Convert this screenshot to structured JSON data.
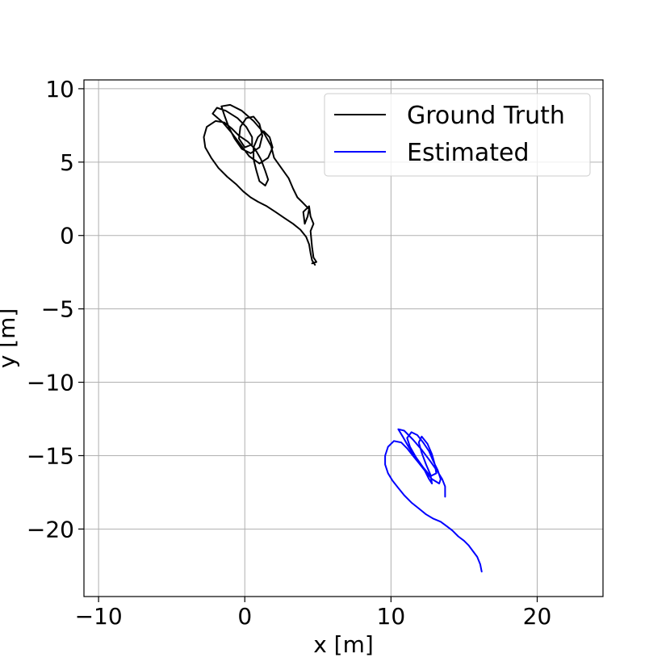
{
  "chart_data": {
    "type": "line",
    "xlabel": "x [m]",
    "ylabel": "y [m]",
    "xlim": [
      -11,
      24.5
    ],
    "ylim": [
      -24.6,
      10.6
    ],
    "xticks": [
      -10,
      0,
      10,
      20
    ],
    "yticks": [
      10,
      5,
      0,
      -5,
      -10,
      -15,
      -20
    ],
    "xtick_labels": [
      "−10",
      "0",
      "10",
      "20"
    ],
    "ytick_labels": [
      "10",
      "5",
      "0",
      "−5",
      "−10",
      "−15",
      "−20"
    ],
    "grid": true,
    "legend_position": "top-right",
    "series": [
      {
        "name": "Ground Truth",
        "color": "#000000",
        "points": [
          [
            4.8,
            -2.0
          ],
          [
            4.6,
            -1.7
          ],
          [
            4.5,
            -1.2
          ],
          [
            4.4,
            -0.6
          ],
          [
            4.2,
            -0.1
          ],
          [
            3.8,
            0.4
          ],
          [
            3.3,
            0.8
          ],
          [
            2.7,
            1.2
          ],
          [
            2.1,
            1.6
          ],
          [
            1.5,
            2.0
          ],
          [
            0.9,
            2.3
          ],
          [
            0.4,
            2.6
          ],
          [
            -0.1,
            3.0
          ],
          [
            -0.6,
            3.5
          ],
          [
            -1.2,
            4.0
          ],
          [
            -1.8,
            4.6
          ],
          [
            -2.3,
            5.3
          ],
          [
            -2.7,
            6.0
          ],
          [
            -2.8,
            6.7
          ],
          [
            -2.6,
            7.4
          ],
          [
            -2.0,
            7.8
          ],
          [
            -1.4,
            7.7
          ],
          [
            -0.9,
            7.3
          ],
          [
            -0.4,
            6.8
          ],
          [
            0.2,
            6.4
          ],
          [
            0.7,
            5.9
          ],
          [
            1.1,
            5.2
          ],
          [
            1.4,
            4.4
          ],
          [
            1.6,
            3.8
          ],
          [
            1.4,
            3.4
          ],
          [
            1.0,
            3.7
          ],
          [
            0.8,
            4.4
          ],
          [
            0.6,
            5.2
          ],
          [
            0.6,
            6.0
          ],
          [
            0.9,
            6.7
          ],
          [
            1.3,
            7.1
          ],
          [
            1.7,
            6.7
          ],
          [
            1.9,
            6.0
          ],
          [
            1.6,
            5.3
          ],
          [
            1.0,
            4.9
          ],
          [
            0.3,
            5.4
          ],
          [
            -0.3,
            6.2
          ],
          [
            -0.9,
            7.0
          ],
          [
            -1.5,
            7.7
          ],
          [
            -2.2,
            8.3
          ],
          [
            -1.9,
            8.7
          ],
          [
            -1.3,
            8.5
          ],
          [
            -0.5,
            8.0
          ],
          [
            0.1,
            7.4
          ],
          [
            0.5,
            6.7
          ],
          [
            0.5,
            6.2
          ],
          [
            0.0,
            6.0
          ],
          [
            -0.4,
            6.6
          ],
          [
            -0.3,
            7.4
          ],
          [
            0.1,
            8.0
          ],
          [
            0.6,
            8.1
          ],
          [
            1.0,
            7.6
          ],
          [
            1.2,
            6.8
          ],
          [
            1.0,
            6.0
          ],
          [
            0.4,
            5.6
          ],
          [
            -0.2,
            5.9
          ],
          [
            -0.7,
            6.6
          ],
          [
            -1.1,
            7.4
          ],
          [
            -1.4,
            8.2
          ],
          [
            -1.6,
            8.8
          ],
          [
            -1.0,
            8.9
          ],
          [
            -0.2,
            8.5
          ],
          [
            0.6,
            7.8
          ],
          [
            1.3,
            7.0
          ],
          [
            1.8,
            6.1
          ],
          [
            2.0,
            5.3
          ],
          [
            2.5,
            4.6
          ],
          [
            3.0,
            3.9
          ],
          [
            3.3,
            3.2
          ],
          [
            3.6,
            2.6
          ],
          [
            3.9,
            2.3
          ],
          [
            4.2,
            2.0
          ],
          [
            4.4,
            1.8
          ],
          [
            4.3,
            1.3
          ],
          [
            4.1,
            0.8
          ],
          [
            4.0,
            1.6
          ],
          [
            4.4,
            2.0
          ],
          [
            4.5,
            1.3
          ],
          [
            4.7,
            0.8
          ],
          [
            4.5,
            0.3
          ],
          [
            4.6,
            -0.8
          ],
          [
            4.7,
            -1.5
          ],
          [
            4.9,
            -1.8
          ],
          [
            4.6,
            -1.9
          ]
        ]
      },
      {
        "name": "Estimated",
        "color": "#0000ff",
        "points": [
          [
            16.2,
            -22.9
          ],
          [
            16.1,
            -22.4
          ],
          [
            15.9,
            -21.9
          ],
          [
            15.6,
            -21.5
          ],
          [
            15.3,
            -21.1
          ],
          [
            15.0,
            -20.8
          ],
          [
            14.6,
            -20.5
          ],
          [
            14.2,
            -20.1
          ],
          [
            13.8,
            -19.8
          ],
          [
            13.4,
            -19.5
          ],
          [
            12.9,
            -19.3
          ],
          [
            12.4,
            -19.0
          ],
          [
            11.9,
            -18.6
          ],
          [
            11.4,
            -18.2
          ],
          [
            10.9,
            -17.7
          ],
          [
            10.5,
            -17.2
          ],
          [
            10.1,
            -16.7
          ],
          [
            9.8,
            -16.2
          ],
          [
            9.6,
            -15.6
          ],
          [
            9.6,
            -15.0
          ],
          [
            9.8,
            -14.4
          ],
          [
            10.2,
            -14.0
          ],
          [
            10.7,
            -14.1
          ],
          [
            11.1,
            -14.5
          ],
          [
            11.5,
            -15.0
          ],
          [
            11.9,
            -15.5
          ],
          [
            12.3,
            -16.0
          ],
          [
            12.6,
            -16.6
          ],
          [
            12.8,
            -16.9
          ],
          [
            12.7,
            -16.3
          ],
          [
            12.4,
            -15.6
          ],
          [
            12.1,
            -14.8
          ],
          [
            11.9,
            -14.1
          ],
          [
            12.1,
            -13.7
          ],
          [
            12.5,
            -14.2
          ],
          [
            12.8,
            -14.9
          ],
          [
            13.0,
            -15.6
          ],
          [
            13.1,
            -16.2
          ],
          [
            12.7,
            -16.4
          ],
          [
            12.2,
            -15.8
          ],
          [
            11.7,
            -15.1
          ],
          [
            11.3,
            -14.4
          ],
          [
            11.1,
            -13.8
          ],
          [
            11.4,
            -13.4
          ],
          [
            11.8,
            -13.6
          ],
          [
            12.2,
            -14.1
          ],
          [
            12.6,
            -14.7
          ],
          [
            12.9,
            -15.4
          ],
          [
            13.2,
            -16.0
          ],
          [
            13.4,
            -16.6
          ],
          [
            13.3,
            -16.9
          ],
          [
            12.8,
            -16.6
          ],
          [
            12.3,
            -16.0
          ],
          [
            11.7,
            -15.2
          ],
          [
            11.2,
            -14.4
          ],
          [
            10.8,
            -13.7
          ],
          [
            10.5,
            -13.2
          ],
          [
            10.9,
            -13.3
          ],
          [
            11.5,
            -13.9
          ],
          [
            12.1,
            -14.6
          ],
          [
            12.7,
            -15.4
          ],
          [
            13.2,
            -16.1
          ],
          [
            13.5,
            -16.6
          ],
          [
            13.7,
            -17.1
          ],
          [
            13.7,
            -17.8
          ]
        ]
      }
    ]
  }
}
